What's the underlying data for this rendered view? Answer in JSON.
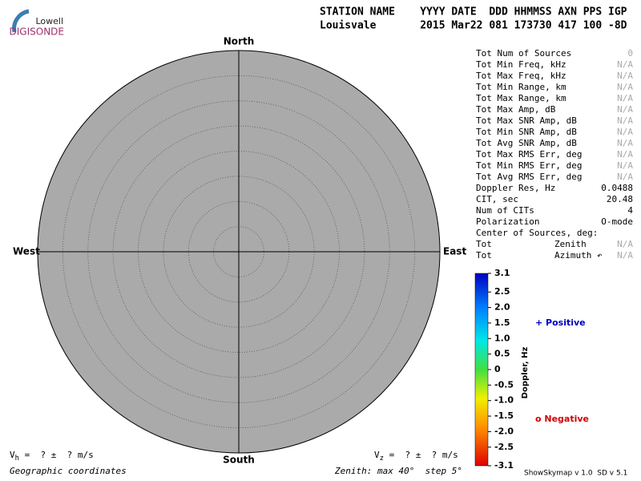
{
  "logo": {
    "top": "Lowell",
    "bottom": "DIGISONDE"
  },
  "header": {
    "line1": "STATION NAME    YYYY DATE  DDD HHMMSS AXN PPS IGP",
    "line2": "Louisvale       2015 Mar22 081 173730 417 100 -8D"
  },
  "skymap": {
    "north": "North",
    "south": "South",
    "west": "West",
    "east": "East"
  },
  "stats": {
    "rows": [
      {
        "label": "Tot Num of Sources",
        "value": "0",
        "muted": true
      },
      {
        "label": "Tot Min Freq, kHz",
        "value": "N/A",
        "muted": true
      },
      {
        "label": "Tot Max Freq, kHz",
        "value": "N/A",
        "muted": true
      },
      {
        "label": "Tot Min Range, km",
        "value": "N/A",
        "muted": true
      },
      {
        "label": "Tot Max Range, km",
        "value": "N/A",
        "muted": true
      },
      {
        "label": "Tot Max Amp, dB",
        "value": "N/A",
        "muted": true
      },
      {
        "label": "Tot Max SNR Amp, dB",
        "value": "N/A",
        "muted": true
      },
      {
        "label": "Tot Min SNR Amp, dB",
        "value": "N/A",
        "muted": true
      },
      {
        "label": "Tot Avg SNR Amp, dB",
        "value": "N/A",
        "muted": true
      },
      {
        "label": "Tot Max RMS Err, deg",
        "value": "N/A",
        "muted": true
      },
      {
        "label": "Tot Min RMS Err, deg",
        "value": "N/A",
        "muted": true
      },
      {
        "label": "Tot Avg RMS Err, deg",
        "value": "N/A",
        "muted": true
      },
      {
        "label": "Doppler Res, Hz",
        "value": "0.0488",
        "muted": false
      },
      {
        "label": "CIT, sec",
        "value": "20.48",
        "muted": false
      },
      {
        "label": "Num of CITs",
        "value": "4",
        "muted": false
      },
      {
        "label": "Polarization",
        "value": "O-mode",
        "muted": false
      }
    ],
    "center_title": "Center of Sources, deg:",
    "center_rows": [
      {
        "label": "Tot",
        "name": "Zenith",
        "value": "N/A"
      },
      {
        "label": "Tot",
        "name": "Azimuth ↶",
        "value": "N/A"
      }
    ]
  },
  "colorbar": {
    "label": "Doppler, Hz",
    "lim": [
      -3.1,
      3.1
    ],
    "ticks": [
      {
        "value": 3.1,
        "label": "3.1"
      },
      {
        "value": 2.5,
        "label": "2.5"
      },
      {
        "value": 2.0,
        "label": "2.0"
      },
      {
        "value": 1.5,
        "label": "1.5"
      },
      {
        "value": 1.0,
        "label": "1.0"
      },
      {
        "value": 0.5,
        "label": "0.5"
      },
      0,
      {
        "value": -0.5,
        "label": "-0.5"
      },
      {
        "value": -1.0,
        "label": "-1.0"
      },
      {
        "value": -1.5,
        "label": "-1.5"
      },
      {
        "value": -2.0,
        "label": "-2.0"
      },
      {
        "value": -2.5,
        "label": "-2.5"
      },
      {
        "value": -3.1,
        "label": "-3.1"
      }
    ],
    "positive": "+ Positive",
    "negative": "o Negative"
  },
  "footer": {
    "vh": {
      "symbol": "V",
      "sub": "h",
      "rest": " =  ? ±  ? m/s"
    },
    "vz": {
      "symbol": "V",
      "sub": "z",
      "rest": " =  ? ±  ? m/s"
    },
    "coords": "Geographic coordinates",
    "zenith": "Zenith: max 40°  step 5°",
    "version": "ShowSkymap v 1.0  SD v 5.1"
  }
}
